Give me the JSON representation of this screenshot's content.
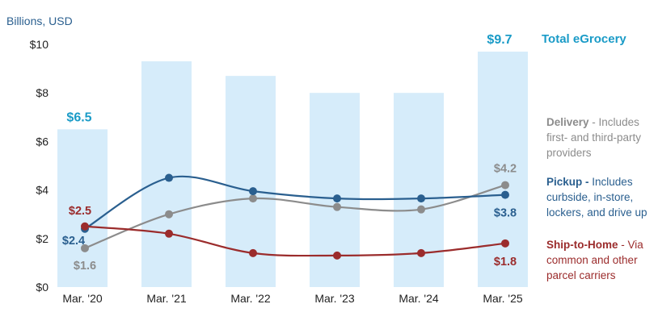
{
  "chart_data": {
    "type": "bar",
    "ylabel": "Billions, USD",
    "ylim": [
      0,
      10
    ],
    "y_ticks": [
      "$0",
      "$2",
      "$4",
      "$6",
      "$8",
      "$10"
    ],
    "y_tick_values": [
      0,
      2,
      4,
      6,
      8,
      10
    ],
    "categories": [
      "Mar. '20",
      "Mar. '21",
      "Mar. '22",
      "Mar. '23",
      "Mar. '24",
      "Mar. '25"
    ],
    "grid": false,
    "bar_series": {
      "name": "Total eGrocery",
      "values": [
        6.5,
        9.3,
        8.7,
        8.0,
        8.0,
        9.7
      ],
      "color": "#d6ecfa",
      "label_color": "#1a9bc7",
      "value_labels": [
        "$6.5",
        "",
        "",
        "",
        "",
        "$9.7"
      ]
    },
    "line_series": [
      {
        "key": "delivery",
        "name": "Delivery",
        "values": [
          1.6,
          3.0,
          3.65,
          3.3,
          3.2,
          4.2
        ],
        "color": "#8c8c8c",
        "value_labels": [
          "$1.6",
          "",
          "",
          "",
          "",
          "$4.2"
        ]
      },
      {
        "key": "pickup",
        "name": "Pickup",
        "values": [
          2.4,
          4.5,
          3.95,
          3.65,
          3.65,
          3.8
        ],
        "color": "#2a5f8f",
        "value_labels": [
          "$2.4",
          "",
          "",
          "",
          "",
          "$3.8"
        ]
      },
      {
        "key": "ship",
        "name": "Ship-to-Home",
        "values": [
          2.5,
          2.2,
          1.4,
          1.3,
          1.4,
          1.8
        ],
        "color": "#9b2c2c",
        "value_labels": [
          "$2.5",
          "",
          "",
          "",
          "",
          "$1.8"
        ]
      }
    ],
    "legend": {
      "total": "Total eGrocery",
      "delivery": {
        "title": "Delivery",
        "sep": " - ",
        "desc": "Includes first- and third-party providers"
      },
      "pickup": {
        "title": "Pickup -",
        "sep": " ",
        "desc": "Includes curbside, in-store, lockers, and drive up"
      },
      "ship": {
        "title": "Ship-to-Home",
        "sep": " - ",
        "desc": "Via common and other parcel carriers"
      }
    }
  }
}
